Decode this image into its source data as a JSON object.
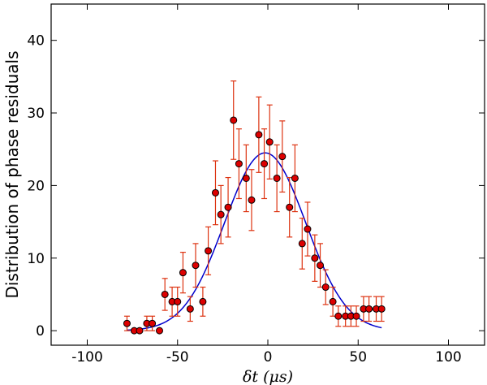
{
  "chart_data": {
    "type": "scatter",
    "title": "",
    "xlabel": "δt (μs)",
    "ylabel": "Distribution of phase residuals",
    "xlim": [
      -120,
      120
    ],
    "ylim": [
      -2,
      45
    ],
    "xticks": [
      -100,
      -50,
      0,
      50,
      100
    ],
    "yticks": [
      0,
      10,
      20,
      30,
      40
    ],
    "xtick_labels": [
      "-100",
      "-50",
      "0",
      "50",
      "100"
    ],
    "ytick_labels": [
      "0",
      "10",
      "20",
      "30",
      "40"
    ],
    "grid": false,
    "colors": {
      "points": "#dd0000",
      "errorbars": "#dd3311",
      "fit": "#0000cc"
    },
    "series": [
      {
        "name": "data",
        "x": [
          -78,
          -74,
          -71,
          -67,
          -64,
          -60,
          -57,
          -53,
          -50,
          -47,
          -43,
          -40,
          -36,
          -33,
          -29,
          -26,
          -22,
          -19,
          -16,
          -12,
          -9,
          -5,
          -2,
          1,
          5,
          8,
          12,
          15,
          19,
          22,
          26,
          29,
          32,
          36,
          39,
          43,
          46,
          49,
          53,
          56,
          60,
          63
        ],
        "y": [
          1,
          0,
          0,
          1,
          1,
          0,
          5,
          4,
          4,
          8,
          3,
          9,
          4,
          11,
          19,
          16,
          17,
          29,
          23,
          21,
          18,
          27,
          23,
          26,
          21,
          24,
          17,
          21,
          12,
          14,
          10,
          9,
          6,
          4,
          2,
          2,
          2,
          2,
          3,
          3,
          3,
          3
        ],
        "yerr": [
          1,
          0,
          0,
          1,
          1,
          0,
          2.2,
          2,
          2,
          2.8,
          1.7,
          3,
          2,
          3.3,
          4.4,
          4,
          4.1,
          5.4,
          4.8,
          4.6,
          4.2,
          5.2,
          4.8,
          5.1,
          4.6,
          4.9,
          4.1,
          4.6,
          3.5,
          3.7,
          3.2,
          3,
          2.4,
          2,
          1.4,
          1.4,
          1.4,
          1.4,
          1.7,
          1.7,
          1.7,
          1.7
        ]
      },
      {
        "name": "gaussian-fit",
        "type": "line",
        "amplitude": 24.5,
        "center": -1.5,
        "sigma": 22.5,
        "x_range": [
          -78,
          63
        ]
      }
    ]
  }
}
